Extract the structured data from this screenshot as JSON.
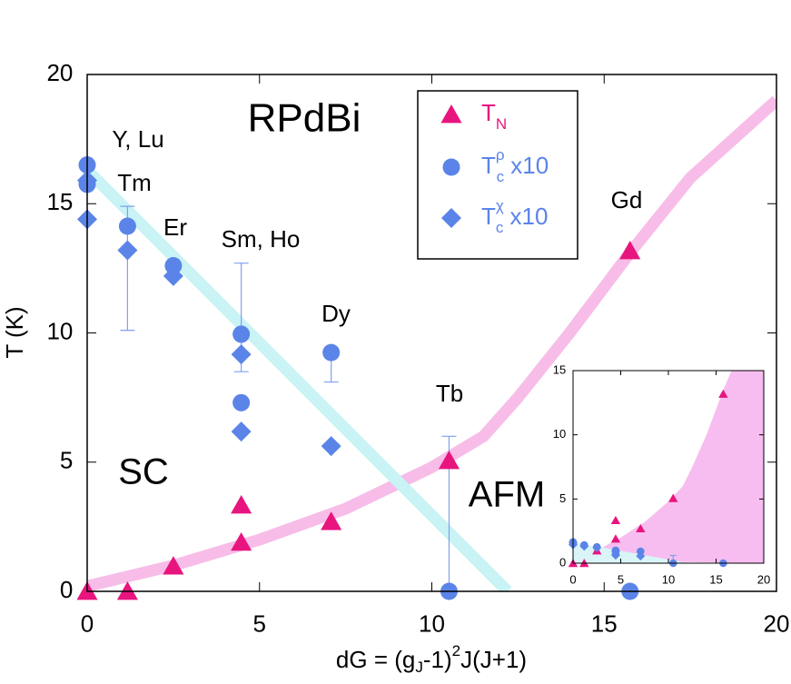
{
  "chart_data": [
    {
      "type": "scatter",
      "title": "RPdBi",
      "xlabel": [
        {
          "text": "dG = (g"
        },
        {
          "sub": "J"
        },
        {
          "text": "-1)"
        },
        {
          "sup": "2"
        },
        {
          "text": "J(J+1)"
        }
      ],
      "ylabel": "T (K)",
      "xlim": [
        0,
        20
      ],
      "ylim": [
        0,
        20
      ],
      "xticks": [
        0,
        5,
        10,
        15,
        20
      ],
      "yticks": [
        0,
        5,
        10,
        15,
        20
      ],
      "annotations": [
        {
          "text": "Y, Lu",
          "color": "#000000"
        },
        {
          "text": "Tm",
          "color": "#000000"
        },
        {
          "text": "Er",
          "color": "#000000"
        },
        {
          "text": "Sm, Ho",
          "color": "#000000"
        },
        {
          "text": "Dy",
          "color": "#000000"
        },
        {
          "text": "Tb",
          "color": "#000000"
        },
        {
          "text": "Gd",
          "color": "#000000"
        },
        {
          "text": "SC",
          "color": "#1a1ae6"
        },
        {
          "text": "AFM",
          "color": "#e81b1b"
        }
      ],
      "curves": [
        {
          "color": "#f7bde8",
          "x": [
            0,
            2.5,
            5,
            7.5,
            10,
            11.5,
            12.5,
            14,
            15.75,
            17.5,
            20
          ],
          "values": [
            0.2,
            1.0,
            2.0,
            3.2,
            4.8,
            6.0,
            7.5,
            10.0,
            13.1,
            16.0,
            19.0
          ]
        },
        {
          "color": "#c9f3f5",
          "x": [
            0,
            12.2
          ],
          "values": [
            16.3,
            0
          ]
        }
      ],
      "error_bars": [
        {
          "x": 1.17,
          "low": 10.1,
          "high": 14.9
        },
        {
          "x": 4.47,
          "low": 8.5,
          "high": 12.7
        },
        {
          "x": 7.08,
          "low": 8.1,
          "high": 9.2
        },
        {
          "x": 10.5,
          "low": 0,
          "high": 6.0
        }
      ],
      "error_color": "#7fa0ef",
      "series": [
        {
          "name": "T",
          "name_sub": "N",
          "marker": "triangle",
          "color": "#e8157f",
          "x": [
            0,
            1.17,
            2.5,
            4.47,
            4.47,
            7.08,
            10.5,
            15.75
          ],
          "values": [
            0,
            0,
            0.98,
            3.34,
            1.9,
            2.7,
            5.06,
            13.18
          ]
        },
        {
          "name": "T",
          "name_sub": "c",
          "name_sup": "ρ",
          "name_suffix": " x10",
          "marker": "circle",
          "color": "#5b84e8",
          "x": [
            0,
            0,
            1.17,
            2.5,
            4.47,
            4.47,
            7.08,
            10.5,
            15.75
          ],
          "values": [
            16.5,
            15.75,
            14.13,
            12.6,
            9.95,
            7.3,
            9.24,
            0,
            0
          ]
        },
        {
          "name": "T",
          "name_sub": "c",
          "name_sup": "χ",
          "name_suffix": " x10",
          "marker": "diamond",
          "color": "#5b84e8",
          "x": [
            0,
            0,
            1.17,
            2.5,
            4.47,
            4.47,
            7.08
          ],
          "values": [
            15.9,
            14.4,
            13.2,
            12.2,
            9.17,
            6.18,
            5.62
          ]
        }
      ]
    },
    {
      "type": "scatter",
      "xlim": [
        0,
        20
      ],
      "ylim": [
        0,
        15
      ],
      "xticks": [
        0,
        5,
        10,
        15,
        20
      ],
      "yticks": [
        0,
        5,
        10,
        15
      ],
      "areas": [
        {
          "color": "#f7bdf0",
          "side": "right",
          "x": [
            0,
            2.5,
            5,
            7.5,
            10,
            11.5,
            12.5,
            14,
            15.75,
            17.5,
            20
          ],
          "values": [
            0.2,
            1.0,
            2.0,
            3.2,
            4.8,
            6.0,
            7.5,
            10.0,
            13.5,
            16.5,
            19.0
          ]
        },
        {
          "color": "#d9f5f7",
          "side": "left",
          "x": [
            0,
            12.2
          ],
          "values": [
            1.63,
            0
          ]
        }
      ],
      "error_bars": [
        {
          "x": 10.5,
          "low": 0,
          "high": 0.6
        }
      ],
      "error_color": "#7fa0ef",
      "series": [
        {
          "marker": "triangle",
          "color": "#e8157f",
          "x": [
            0,
            1.17,
            2.5,
            4.47,
            4.47,
            7.08,
            10.5,
            15.75
          ],
          "values": [
            0,
            0,
            0.98,
            3.34,
            1.9,
            2.7,
            5.06,
            13.18
          ]
        },
        {
          "marker": "circle",
          "color": "#5b84e8",
          "x": [
            0,
            0,
            1.17,
            2.5,
            4.47,
            4.47,
            7.08,
            10.5,
            15.75
          ],
          "values": [
            1.65,
            1.58,
            1.41,
            1.26,
            0.995,
            0.73,
            0.92,
            0,
            0
          ]
        },
        {
          "marker": "diamond",
          "color": "#5b84e8",
          "x": [
            0,
            0,
            1.17,
            2.5,
            4.47,
            4.47,
            7.08
          ],
          "values": [
            1.59,
            1.44,
            1.32,
            1.22,
            0.92,
            0.62,
            0.56
          ]
        }
      ]
    }
  ]
}
